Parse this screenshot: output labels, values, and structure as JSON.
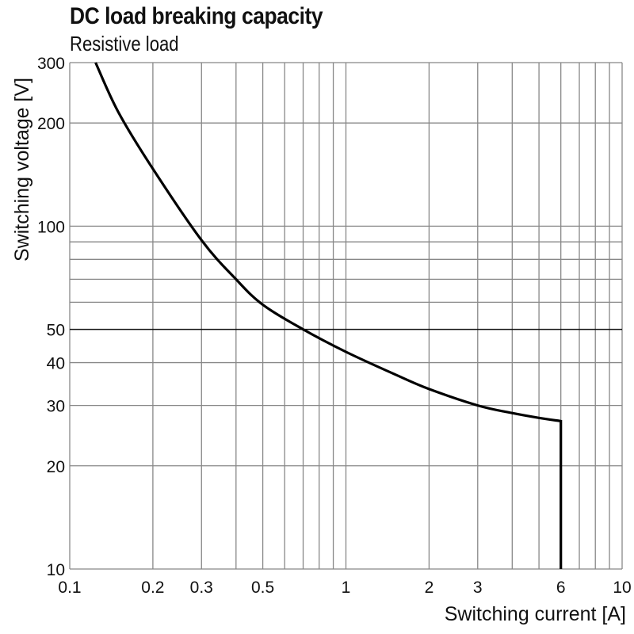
{
  "chart_data": {
    "type": "line",
    "title": "DC load breaking capacity",
    "subtitle": "Resistive load",
    "xlabel": "Switching current [A]",
    "ylabel": "Switching voltage [V]",
    "xscale": "log",
    "yscale": "log",
    "xlim": [
      0.1,
      10
    ],
    "ylim": [
      10,
      300
    ],
    "grid": true,
    "x_ticks": [
      0.1,
      0.2,
      0.3,
      0.5,
      1,
      2,
      3,
      6,
      10
    ],
    "x_tick_labels": [
      "0.1",
      "0.2",
      "0.3",
      "0.5",
      "1",
      "2",
      "3",
      "6",
      "10"
    ],
    "y_ticks": [
      10,
      20,
      30,
      40,
      50,
      100,
      200,
      300
    ],
    "y_tick_labels": [
      "10",
      "20",
      "30",
      "40",
      "50",
      "100",
      "200",
      "300"
    ],
    "x_gridlines": [
      0.1,
      0.2,
      0.3,
      0.4,
      0.5,
      0.6,
      0.7,
      0.8,
      0.9,
      1,
      2,
      3,
      4,
      5,
      6,
      7,
      8,
      9,
      10
    ],
    "y_gridlines": [
      10,
      20,
      30,
      40,
      50,
      60,
      70,
      80,
      90,
      100,
      200,
      300
    ],
    "highlighted_gridline_y": 50,
    "series": [
      {
        "color": "#000000",
        "x": [
          0.124,
          0.15,
          0.2,
          0.3,
          0.4,
          0.5,
          0.7,
          1,
          1.5,
          2,
          3,
          4,
          5,
          6,
          6,
          6
        ],
        "y": [
          300,
          215,
          147,
          91,
          70,
          59,
          50,
          43,
          37,
          33.5,
          30,
          28.5,
          27.6,
          27,
          20,
          10
        ]
      }
    ]
  }
}
